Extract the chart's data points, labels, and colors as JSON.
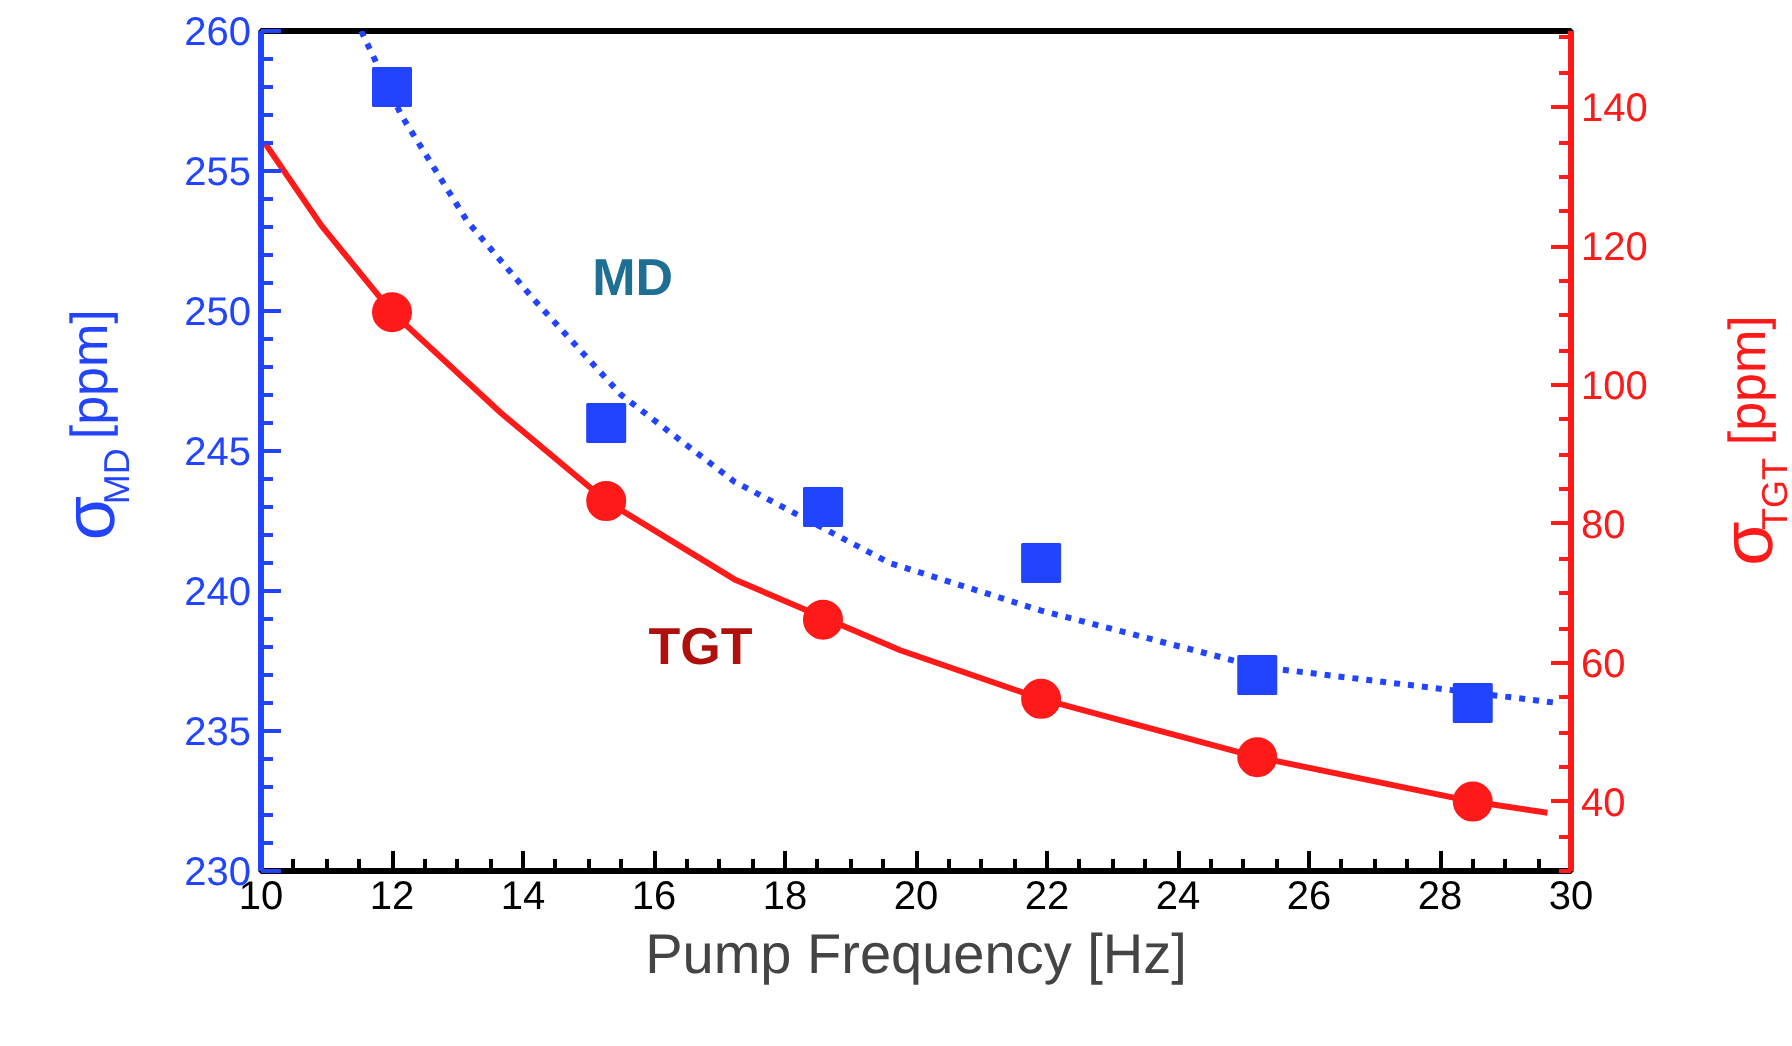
{
  "chart_data": {
    "type": "scatter",
    "xlabel": "Pump Frequency [Hz]",
    "ylabel": "σ$_{MD}$ [ppm]",
    "y2label": "σ$_{TGT}$ [ppm]",
    "xlim": [
      10,
      30
    ],
    "xticks": [
      10,
      12,
      14,
      16,
      18,
      20,
      22,
      24,
      26,
      28,
      30
    ],
    "ylim": [
      230,
      260
    ],
    "yticks": [
      230,
      235,
      240,
      245,
      250,
      255,
      260
    ],
    "y2lim": [
      30,
      151
    ],
    "y2ticks": [
      40,
      60,
      80,
      100,
      120,
      140
    ],
    "grid": false,
    "series": [
      {
        "name": "MD",
        "marker": "square",
        "color": "#2244ff",
        "x": [
          12.0,
          15.27,
          18.58,
          21.91,
          25.21,
          28.5
        ],
        "values": [
          258,
          246,
          243,
          241,
          237,
          236
        ]
      },
      {
        "name": "TGT",
        "marker": "circle",
        "color": "#ff1a1a",
        "axis": "y2",
        "x": [
          12.0,
          15.27,
          18.58,
          21.91,
          25.21,
          28.5
        ],
        "values": [
          110.5,
          83.3,
          66.2,
          54.8,
          46.4,
          40
        ]
      },
      {
        "type": "line",
        "line_style": "dotted",
        "color": "#2244ff",
        "x": [
          11.53,
          12.14,
          13.15,
          14.17,
          15.5,
          17.23,
          19.6,
          21.91,
          25.21,
          29.8
        ],
        "values": [
          260,
          257,
          253.2,
          250.4,
          247,
          243.9,
          241,
          239.3,
          237.3,
          236
        ]
      },
      {
        "type": "line",
        "line_style": "solid",
        "color": "#ff1a1a",
        "axis": "y2",
        "x": [
          10.05,
          10.92,
          12.0,
          13.66,
          15.27,
          17.23,
          19.76,
          21.91,
          25.21,
          28.5,
          29.64
        ],
        "values": [
          135,
          123,
          110.5,
          96,
          83.3,
          72,
          61.8,
          54.8,
          46.4,
          40,
          38.4
        ]
      }
    ]
  }
}
